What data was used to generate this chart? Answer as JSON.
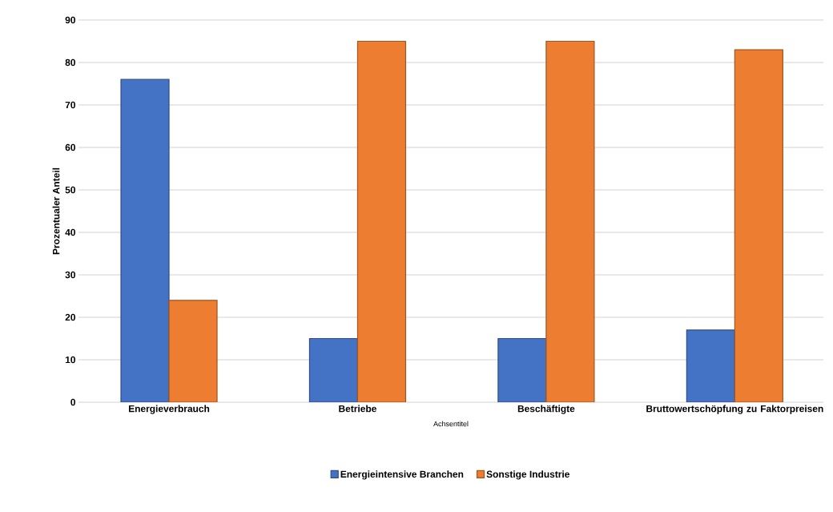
{
  "chart_data": {
    "type": "bar",
    "xlabel": "Achsentitel",
    "ylabel": "Prozentualer Anteil",
    "categories": [
      "Energieverbrauch",
      "Betriebe",
      "Beschäftigte",
      "Bruttowertschöpfung zu Faktorpreisen"
    ],
    "series": [
      {
        "name": "Energieintensive Branchen",
        "color": "#4472c4",
        "values": [
          76,
          15,
          15,
          17
        ]
      },
      {
        "name": "Sonstige Industrie",
        "color": "#ed7d31",
        "values": [
          24,
          85,
          85,
          83
        ]
      }
    ],
    "ylim": [
      0,
      90
    ],
    "yticks": [
      0,
      10,
      20,
      30,
      40,
      50,
      60,
      70,
      80,
      90
    ],
    "grid": "y",
    "legend": "bottom"
  }
}
